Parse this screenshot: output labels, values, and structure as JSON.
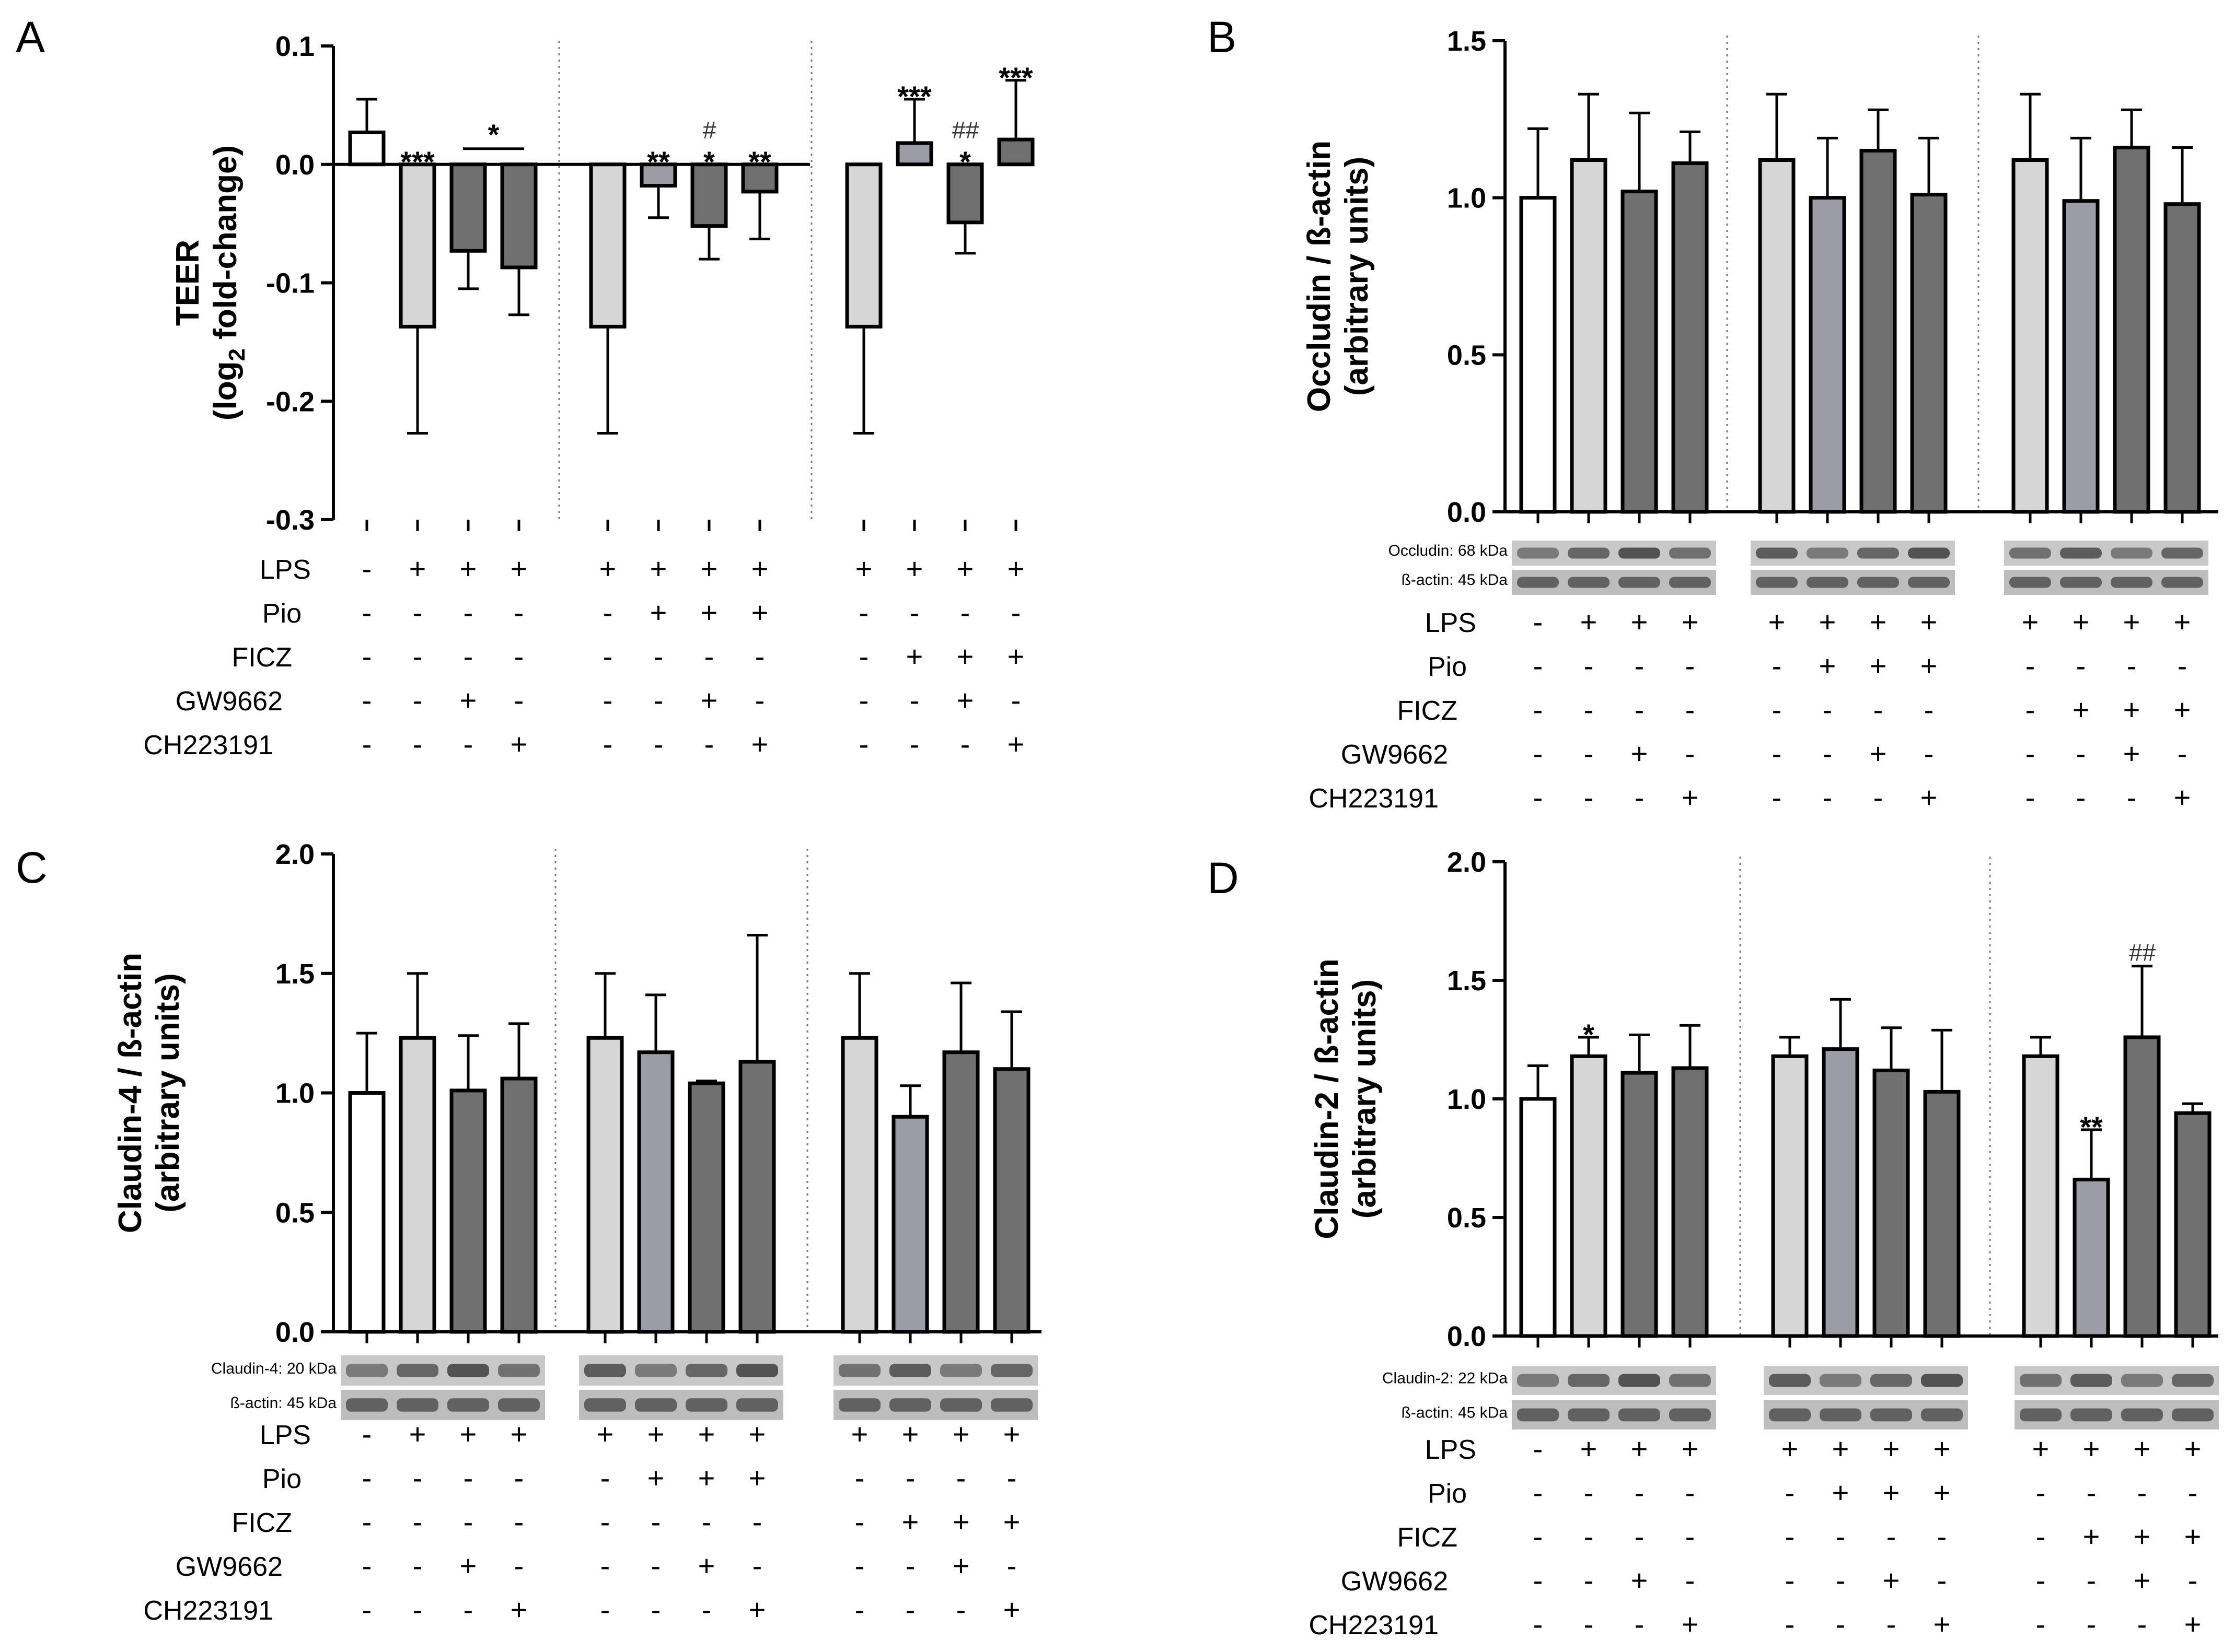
{
  "figure": {
    "colors": {
      "white": "#ffffff",
      "light": "#d6d6d6",
      "mid": "#9c9ca6",
      "dark": "#707070"
    },
    "row_labels": [
      "LPS",
      "Pio",
      "FICZ",
      "GW9662",
      "CH223191"
    ],
    "design": [
      [
        "-",
        "+",
        "+",
        "+",
        "+",
        "+",
        "+",
        "+",
        "+",
        "+",
        "+",
        "+"
      ],
      [
        "-",
        "-",
        "-",
        "-",
        "-",
        "+",
        "+",
        "+",
        "-",
        "-",
        "-",
        "-"
      ],
      [
        "-",
        "-",
        "-",
        "-",
        "-",
        "-",
        "-",
        "-",
        "-",
        "+",
        "+",
        "+"
      ],
      [
        "-",
        "-",
        "+",
        "-",
        "-",
        "-",
        "+",
        "-",
        "-",
        "-",
        "+",
        "-"
      ],
      [
        "-",
        "-",
        "-",
        "+",
        "-",
        "-",
        "-",
        "+",
        "-",
        "-",
        "-",
        "+"
      ]
    ],
    "bar_colors": [
      "white",
      "light",
      "dark",
      "dark",
      "light",
      "mid",
      "dark",
      "dark",
      "light",
      "mid",
      "dark",
      "dark"
    ]
  },
  "chart_data": [
    {
      "panel": "A",
      "type": "bar",
      "ylabel_line1": "TEER",
      "ylabel_line2_pre": "(log",
      "ylabel_sub": "2",
      "ylabel_line2_post": " fold-change)",
      "ylim": [
        -0.3,
        0.1
      ],
      "yticks": [
        "0.1",
        "0.0",
        "-0.1",
        "-0.2",
        "-0.3"
      ],
      "ytick_values": [
        0.1,
        0.0,
        -0.1,
        -0.2,
        -0.3
      ],
      "values": [
        0.027,
        -0.137,
        -0.073,
        -0.087,
        -0.137,
        -0.018,
        -0.052,
        -0.023,
        -0.137,
        0.018,
        -0.049,
        0.021
      ],
      "errors": [
        0.028,
        0.09,
        0.032,
        0.04,
        0.09,
        0.027,
        0.028,
        0.04,
        0.09,
        0.037,
        0.026,
        0.05
      ],
      "annotations": [
        {
          "bar": 1,
          "text": "***",
          "kind": "star"
        },
        {
          "bar": 3,
          "text": "*",
          "kind": "star",
          "bracket": [
            2,
            3
          ]
        },
        {
          "bar": 5,
          "text": "**",
          "kind": "star"
        },
        {
          "bar": 6,
          "text": "*",
          "kind": "star"
        },
        {
          "bar": 6,
          "text": "#",
          "kind": "hash"
        },
        {
          "bar": 7,
          "text": "**",
          "kind": "star"
        },
        {
          "bar": 9,
          "text": "***",
          "kind": "star"
        },
        {
          "bar": 10,
          "text": "*",
          "kind": "star"
        },
        {
          "bar": 10,
          "text": "##",
          "kind": "hash"
        },
        {
          "bar": 11,
          "text": "***",
          "kind": "star"
        }
      ],
      "blot": null
    },
    {
      "panel": "B",
      "type": "bar",
      "ylabel_line1": "Occludin / ß-actin",
      "ylabel_line2": "(arbitrary units)",
      "ylim": [
        0,
        1.5
      ],
      "yticks": [
        "1.5",
        "1.0",
        "0.5",
        "0.0"
      ],
      "ytick_values": [
        1.5,
        1.0,
        0.5,
        0.0
      ],
      "values": [
        1.0,
        1.12,
        1.02,
        1.11,
        1.12,
        1.0,
        1.15,
        1.01,
        1.12,
        0.99,
        1.16,
        0.98
      ],
      "errors": [
        0.22,
        0.21,
        0.25,
        0.1,
        0.21,
        0.19,
        0.13,
        0.18,
        0.21,
        0.2,
        0.12,
        0.18
      ],
      "annotations": [],
      "blot": {
        "top_label": "Occludin: 68 kDa",
        "bottom_label": "ß-actin: 45 kDa"
      }
    },
    {
      "panel": "C",
      "type": "bar",
      "ylabel_line1": "Claudin-4 / ß-actin",
      "ylabel_line2": "(arbitrary units)",
      "ylim": [
        0,
        2.0
      ],
      "yticks": [
        "2.0",
        "1.5",
        "1.0",
        "0.5",
        "0.0"
      ],
      "ytick_values": [
        2.0,
        1.5,
        1.0,
        0.5,
        0.0
      ],
      "values": [
        1.0,
        1.23,
        1.01,
        1.06,
        1.23,
        1.17,
        1.04,
        1.13,
        1.23,
        0.9,
        1.17,
        1.1
      ],
      "errors": [
        0.25,
        0.27,
        0.23,
        0.23,
        0.27,
        0.24,
        0.01,
        0.53,
        0.27,
        0.13,
        0.29,
        0.24
      ],
      "annotations": [],
      "blot": {
        "top_label": "Claudin-4: 20 kDa",
        "bottom_label": "ß-actin: 45 kDa"
      }
    },
    {
      "panel": "D",
      "type": "bar",
      "ylabel_line1": "Claudin-2 / ß-actin",
      "ylabel_line2": "(arbitrary units)",
      "ylim": [
        0,
        2.0
      ],
      "yticks": [
        "2.0",
        "1.5",
        "1.0",
        "0.5",
        "0.0"
      ],
      "ytick_values": [
        2.0,
        1.5,
        1.0,
        0.5,
        0.0
      ],
      "values": [
        1.0,
        1.18,
        1.11,
        1.13,
        1.18,
        1.21,
        1.12,
        1.03,
        1.18,
        0.66,
        1.26,
        0.94
      ],
      "errors": [
        0.14,
        0.08,
        0.16,
        0.18,
        0.08,
        0.21,
        0.18,
        0.26,
        0.08,
        0.21,
        0.3,
        0.04
      ],
      "annotations": [
        {
          "bar": 1,
          "text": "*",
          "kind": "star"
        },
        {
          "bar": 9,
          "text": "**",
          "kind": "star"
        },
        {
          "bar": 10,
          "text": "##",
          "kind": "hash"
        }
      ],
      "blot": {
        "top_label": "Claudin-2: 22 kDa",
        "bottom_label": "ß-actin: 45 kDa"
      }
    }
  ]
}
